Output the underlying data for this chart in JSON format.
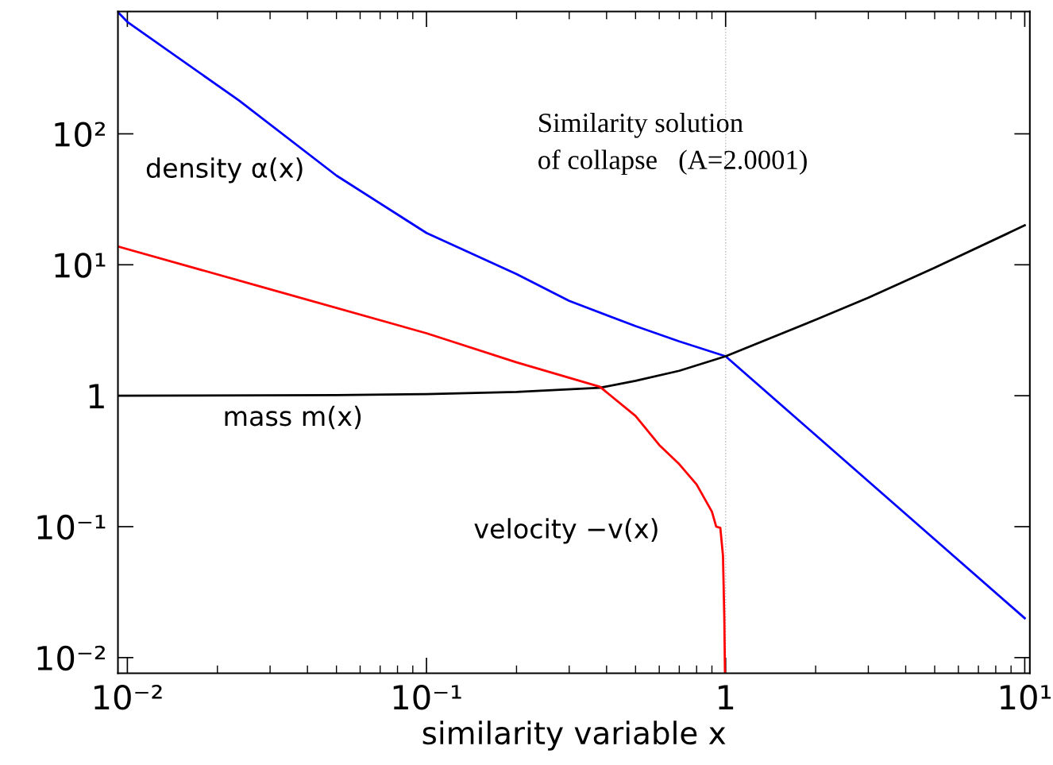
{
  "chart_data": {
    "type": "line",
    "xlabel": "similarity variable x",
    "log": "xy",
    "grid": false,
    "xlim": [
      0.0093,
      10.4
    ],
    "ylim": [
      0.0076,
      860
    ],
    "xticks": [
      {
        "value": 0.01,
        "label": "10⁻²"
      },
      {
        "value": 0.1,
        "label": "10⁻¹"
      },
      {
        "value": 1,
        "label": "1"
      },
      {
        "value": 10,
        "label": "10¹"
      }
    ],
    "yticks": [
      {
        "value": 0.01,
        "label": "10⁻²"
      },
      {
        "value": 0.1,
        "label": "10⁻¹"
      },
      {
        "value": 1,
        "label": "1"
      },
      {
        "value": 10,
        "label": "10¹"
      },
      {
        "value": 100,
        "label": "10²"
      }
    ],
    "series": [
      {
        "color": "#0000ff",
        "x": [
          0.0093,
          0.01,
          0.0236,
          0.05,
          0.1,
          0.2,
          0.3,
          0.5,
          0.7,
          1,
          2,
          5,
          10
        ],
        "values": [
          850,
          716,
          180,
          48,
          17.5,
          8.5,
          5.3,
          3.4,
          2.6,
          2,
          0.5,
          0.08,
          0.02
        ]
      },
      {
        "color": "#000000",
        "x": [
          0.0093,
          0.05,
          0.1,
          0.2,
          0.38,
          0.5,
          0.7,
          1,
          2,
          3,
          5,
          10
        ],
        "values": [
          1,
          1.01,
          1.03,
          1.07,
          1.15,
          1.3,
          1.55,
          2,
          3.8,
          5.6,
          9.5,
          20
        ]
      },
      {
        "color": "#ff0000",
        "x": [
          0.0093,
          0.03,
          0.1,
          0.2,
          0.38,
          0.5,
          0.6,
          0.7,
          0.8,
          0.9,
          0.93,
          0.96,
          0.98,
          0.99,
          0.995
        ],
        "values": [
          13.8,
          6.5,
          3.0,
          1.8,
          1.17,
          0.7,
          0.42,
          0.3,
          0.21,
          0.13,
          0.1,
          0.098,
          0.06,
          0.02,
          0.0076
        ]
      }
    ],
    "ref_lines": [
      {
        "axis": "x",
        "value": 1,
        "color": "#bbbbbb",
        "line_style": "dotted"
      }
    ],
    "annotations": [
      "density α(x)",
      "mass m(x)",
      "velocity −v(x)",
      "Similarity solution\nof collapse   (A=2.0001)"
    ]
  }
}
